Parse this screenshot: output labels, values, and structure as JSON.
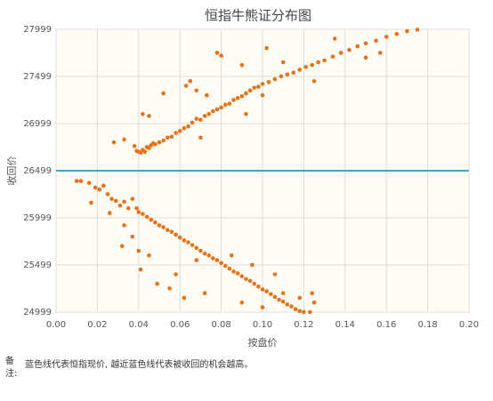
{
  "chart_data": {
    "type": "scatter",
    "title": "恒指牛熊证分布图",
    "x_label": "按盘价",
    "y_label": "收回价",
    "xlim": [
      0,
      0.2
    ],
    "xticks": [
      {
        "value": 0,
        "label": "0.00"
      },
      {
        "value": 0.02,
        "label": "0.02"
      },
      {
        "value": 0.04,
        "label": "0.04"
      },
      {
        "value": 0.06,
        "label": "0.06"
      },
      {
        "value": 0.08,
        "label": "0.08"
      },
      {
        "value": 0.1,
        "label": "0.10"
      },
      {
        "value": 0.12,
        "label": "0.12"
      },
      {
        "value": 0.14,
        "label": "0.14"
      },
      {
        "value": 0.16,
        "label": "0.16"
      },
      {
        "value": 0.18,
        "label": "0.18"
      },
      {
        "value": 0.2,
        "label": "0.20"
      }
    ],
    "ylim": [
      24999,
      27999
    ],
    "yticks": [
      24999,
      25499,
      25999,
      26499,
      26999,
      27499,
      27999
    ],
    "grid": true,
    "reference_line": {
      "value": 26499,
      "color": "#3aa8c9"
    },
    "series": [
      {
        "color": "#e8711c",
        "x": [
          0.028,
          0.033,
          0.038,
          0.039,
          0.04,
          0.041,
          0.042,
          0.043,
          0.044,
          0.045,
          0.046,
          0.047,
          0.048,
          0.05,
          0.052,
          0.054,
          0.056,
          0.058,
          0.06,
          0.062,
          0.064,
          0.066,
          0.068,
          0.07,
          0.072,
          0.074,
          0.076,
          0.078,
          0.08,
          0.082,
          0.084,
          0.086,
          0.088,
          0.09,
          0.092,
          0.094,
          0.096,
          0.098,
          0.1,
          0.103,
          0.106,
          0.109,
          0.112,
          0.115,
          0.118,
          0.121,
          0.124,
          0.127,
          0.13,
          0.134,
          0.138,
          0.142,
          0.146,
          0.15,
          0.155,
          0.16,
          0.165,
          0.17,
          0.175,
          0.042,
          0.045,
          0.052,
          0.063,
          0.065,
          0.068,
          0.073,
          0.078,
          0.08,
          0.09,
          0.1,
          0.102,
          0.11,
          0.125,
          0.135,
          0.15,
          0.157,
          0.092,
          0.07,
          0.01,
          0.012,
          0.016,
          0.019,
          0.021,
          0.023,
          0.025,
          0.027,
          0.029,
          0.031,
          0.033,
          0.035,
          0.037,
          0.039,
          0.04,
          0.042,
          0.044,
          0.046,
          0.048,
          0.05,
          0.052,
          0.054,
          0.056,
          0.058,
          0.06,
          0.062,
          0.064,
          0.066,
          0.068,
          0.07,
          0.072,
          0.074,
          0.076,
          0.078,
          0.08,
          0.082,
          0.084,
          0.086,
          0.088,
          0.09,
          0.092,
          0.094,
          0.096,
          0.098,
          0.1,
          0.102,
          0.104,
          0.106,
          0.108,
          0.11,
          0.112,
          0.114,
          0.116,
          0.118,
          0.12,
          0.123,
          0.017,
          0.026,
          0.033,
          0.037,
          0.032,
          0.04,
          0.045,
          0.041,
          0.049,
          0.055,
          0.058,
          0.062,
          0.068,
          0.072,
          0.085,
          0.09,
          0.095,
          0.1,
          0.106,
          0.11,
          0.118,
          0.125,
          0.124
        ],
        "values": [
          26800,
          26830,
          26760,
          26710,
          26700,
          26690,
          26720,
          26700,
          26750,
          26740,
          26770,
          26790,
          26780,
          26800,
          26820,
          26850,
          26860,
          26900,
          26920,
          26950,
          26970,
          27010,
          27050,
          27040,
          27080,
          27100,
          27130,
          27150,
          27170,
          27200,
          27210,
          27250,
          27270,
          27290,
          27320,
          27350,
          27380,
          27390,
          27420,
          27440,
          27470,
          27500,
          27520,
          27540,
          27570,
          27600,
          27620,
          27650,
          27670,
          27710,
          27750,
          27780,
          27820,
          27850,
          27880,
          27920,
          27950,
          27980,
          27995,
          27100,
          27080,
          27320,
          27400,
          27450,
          27350,
          27300,
          27750,
          27720,
          27620,
          27300,
          27800,
          27650,
          27450,
          27900,
          27700,
          27750,
          27100,
          26850,
          26390,
          26390,
          26370,
          26320,
          26300,
          26340,
          26250,
          26200,
          26180,
          26130,
          26170,
          26100,
          26200,
          26100,
          26060,
          26040,
          26010,
          25980,
          25950,
          25920,
          25900,
          25870,
          25850,
          25820,
          25790,
          25760,
          25740,
          25710,
          25680,
          25650,
          25620,
          25600,
          25570,
          25550,
          25520,
          25490,
          25460,
          25430,
          25410,
          25380,
          25350,
          25330,
          25300,
          25270,
          25240,
          25220,
          25190,
          25160,
          25130,
          25110,
          25080,
          25060,
          25030,
          25010,
          25000,
          24999,
          26160,
          26050,
          25920,
          25800,
          25700,
          25650,
          25600,
          25450,
          25300,
          25250,
          25400,
          25150,
          25550,
          25200,
          25600,
          25100,
          25500,
          25050,
          25400,
          25200,
          25150,
          25100,
          25200
        ]
      }
    ]
  },
  "note": {
    "label": "备注:",
    "text": "蓝色线代表恒指现价, 越近蓝色线代表被收回的机会越高。"
  }
}
